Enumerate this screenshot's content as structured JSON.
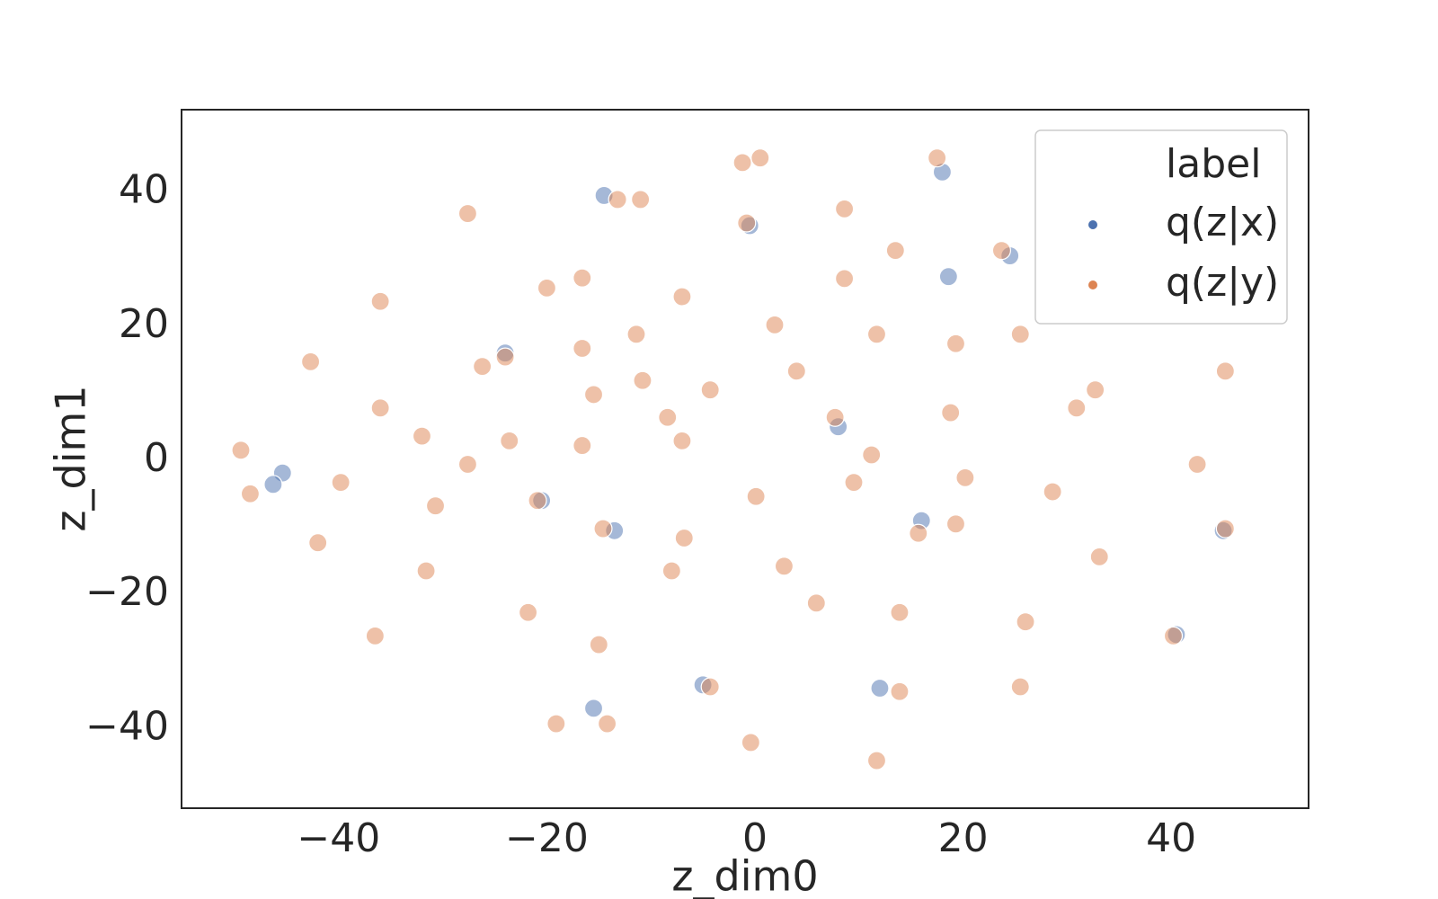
{
  "chart_data": {
    "type": "scatter",
    "x_label": "z_dim0",
    "y_label": "z_dim1",
    "xlim": [
      -55.1,
      53.2
    ],
    "ylim": [
      -51.9,
      52.3
    ],
    "xticks": [
      {
        "value": -40,
        "label": "−40"
      },
      {
        "value": -20,
        "label": "−20"
      },
      0,
      20,
      40
    ],
    "yticks": [
      {
        "value": -40,
        "label": "−40"
      },
      {
        "value": -20,
        "label": "−20"
      },
      0,
      20,
      40
    ],
    "grid": false,
    "legend": "upper right",
    "legend_title": "label",
    "series": [
      {
        "name": "q(z|x)",
        "color": "#4c72b0",
        "x": [
          -45.4,
          -46.3,
          18.6,
          18,
          -24,
          -14.5,
          -15.5,
          8,
          16,
          -20.5,
          -5,
          -0.5,
          24.5,
          45,
          -13.5,
          12,
          40.5
        ],
        "values": [
          -1.9,
          -3.6,
          27.4,
          43,
          16,
          39.5,
          -37,
          5,
          -9,
          -6,
          -33.5,
          35,
          30.5,
          -10.5,
          -10.5,
          -34,
          -26
        ]
      },
      {
        "name": "q(z|y)",
        "color": "#dd8452",
        "x": [
          -49.4,
          -48.5,
          -42.7,
          -39.8,
          -42,
          -36,
          -36,
          -36.5,
          -32,
          -30.7,
          -31.6,
          -27.6,
          -26.2,
          -24,
          -27.6,
          -23.6,
          -20,
          -20.9,
          -21.8,
          -19.1,
          -14.2,
          -16.6,
          -16.6,
          -15.5,
          -16.6,
          -14.6,
          -15,
          -13.2,
          -11,
          -11.4,
          -10.8,
          -8,
          -6.8,
          -7,
          -8.4,
          -7,
          -4.3,
          -4.3,
          -1.2,
          0.5,
          -0.8,
          0.1,
          -0.4,
          1.9,
          2.8,
          5.9,
          4,
          7.7,
          8.6,
          8.6,
          9.5,
          11.2,
          11.7,
          13.9,
          13.9,
          13.5,
          11.7,
          15.7,
          17.5,
          19.3,
          18.8,
          19.3,
          20.2,
          23.7,
          25.5,
          25.5,
          26,
          28.6,
          30.9,
          32.7,
          33.1,
          40.2,
          42.5,
          45.2,
          45.2
        ],
        "values": [
          1.5,
          -5,
          14.7,
          -3.3,
          -12.3,
          23.7,
          7.8,
          -26.2,
          3.6,
          -6.8,
          -16.5,
          36.8,
          14,
          15.4,
          -0.6,
          2.9,
          25.7,
          -6,
          -22.7,
          -39.3,
          -39.3,
          27.2,
          16.7,
          9.8,
          2.2,
          -10.2,
          -27.5,
          38.9,
          38.9,
          18.8,
          11.9,
          -16.5,
          -11.6,
          2.9,
          6.4,
          24.4,
          10.5,
          -33.8,
          44.4,
          45.1,
          35.4,
          -5.4,
          -42.1,
          20.2,
          -15.8,
          -21.3,
          13.3,
          6.4,
          27.1,
          37.5,
          -3.3,
          0.8,
          -44.8,
          -34.5,
          -22.7,
          31.3,
          18.8,
          -10.9,
          45.1,
          17.4,
          7.1,
          -9.5,
          -2.6,
          31.3,
          18.8,
          -33.8,
          -24.1,
          -4.7,
          7.8,
          10.5,
          -14.4,
          -26.2,
          -0.6,
          -10.2,
          13.3
        ]
      }
    ]
  }
}
